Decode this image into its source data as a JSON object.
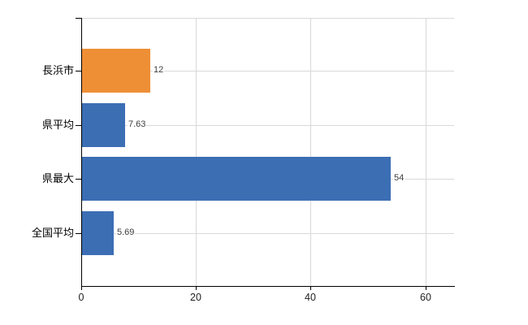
{
  "chart_data": {
    "type": "bar",
    "orientation": "horizontal",
    "title": "",
    "categories": [
      "長浜市",
      "県平均",
      "県最大",
      "全国平均"
    ],
    "values": [
      12,
      7.63,
      54,
      5.69
    ],
    "value_labels": [
      "12",
      "7.63",
      "54",
      "5.69"
    ],
    "bar_colors": [
      "#ee8f36",
      "#3c6eb4",
      "#3c6eb4",
      "#3c6eb4"
    ],
    "x_tick_labels": [
      "0",
      "20",
      "40",
      "60"
    ],
    "x_tick_values": [
      0,
      20,
      40,
      60
    ],
    "xlim": [
      0,
      65
    ],
    "xlabel": "",
    "ylabel": "",
    "grid": "on",
    "legend": "none"
  },
  "colors": {
    "bar_orange": "#ee8f36",
    "bar_blue": "#3c6eb4",
    "gridline": "#d9d9d9",
    "axis": "#000000",
    "category_label": "#000000",
    "value_label": "#3c3c3c",
    "background": "#ffffff"
  }
}
